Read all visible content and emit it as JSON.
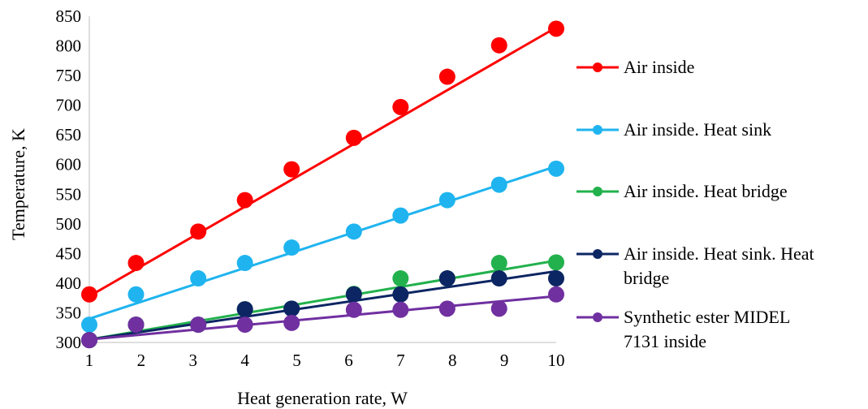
{
  "chart_data": {
    "type": "scatter",
    "title": "",
    "xlabel": "Heat generation rate, W",
    "ylabel": "Temperature, K",
    "xlim": [
      1,
      10
    ],
    "ylim": [
      300,
      850
    ],
    "x_ticks": [
      "1",
      "2",
      "3",
      "4",
      "5",
      "6",
      "7",
      "8",
      "9",
      "10"
    ],
    "y_ticks": [
      "300",
      "350",
      "400",
      "450",
      "500",
      "550",
      "600",
      "650",
      "700",
      "750",
      "800",
      "850"
    ],
    "grid": false,
    "legend_position": "right",
    "series": [
      {
        "name": "Air inside",
        "color": "#ff0000",
        "x": [
          1,
          1.9,
          3.1,
          4,
          4.9,
          6.1,
          7,
          7.9,
          8.9,
          10
        ],
        "y": [
          381,
          434,
          487,
          540,
          592,
          645,
          697,
          748,
          801,
          829
        ],
        "trendline": [
          [
            1,
            378
          ],
          [
            10,
            831
          ]
        ]
      },
      {
        "name": "Air inside. Heat sink",
        "color": "#1fb4ef",
        "x": [
          1,
          1.9,
          3.1,
          4,
          4.9,
          6.1,
          7,
          7.9,
          8.9,
          10
        ],
        "y": [
          330,
          381,
          408,
          434,
          460,
          487,
          514,
          540,
          566,
          593
        ],
        "trendline": [
          [
            1,
            340
          ],
          [
            10,
            597
          ]
        ]
      },
      {
        "name": "Air inside. Heat bridge",
        "color": "#22b14c",
        "x": [
          1,
          1.9,
          3.1,
          4,
          4.9,
          6.1,
          7,
          7.9,
          8.9,
          10
        ],
        "y": [
          304,
          330,
          330,
          356,
          357,
          382,
          408,
          408,
          434,
          435
        ],
        "trendline": [
          [
            1,
            305
          ],
          [
            10,
            438
          ]
        ]
      },
      {
        "name": "Air inside. Heat sink. Heat bridge",
        "color": "#0c2563",
        "x": [
          1,
          1.9,
          3.1,
          4,
          4.9,
          6.1,
          7,
          7.9,
          8.9,
          10
        ],
        "y": [
          304,
          330,
          330,
          356,
          357,
          381,
          381,
          408,
          408,
          408
        ],
        "trendline": [
          [
            1,
            305
          ],
          [
            10,
            420
          ]
        ]
      },
      {
        "name": "Synthetic ester MIDEL 7131 inside",
        "color": "#7030a0",
        "x": [
          1,
          1.9,
          3.1,
          4,
          4.9,
          6.1,
          7,
          7.9,
          8.9,
          10
        ],
        "y": [
          304,
          330,
          330,
          330,
          333,
          355,
          355,
          357,
          357,
          381
        ],
        "trendline": [
          [
            1,
            305
          ],
          [
            10,
            378
          ]
        ]
      }
    ],
    "legend_lines": [
      [
        "Air inside"
      ],
      [
        "Air inside. Heat sink"
      ],
      [
        "Air inside. Heat bridge"
      ],
      [
        "Air inside. Heat sink. Heat",
        "bridge"
      ],
      [
        "Synthetic ester MIDEL",
        "7131 inside"
      ]
    ]
  }
}
